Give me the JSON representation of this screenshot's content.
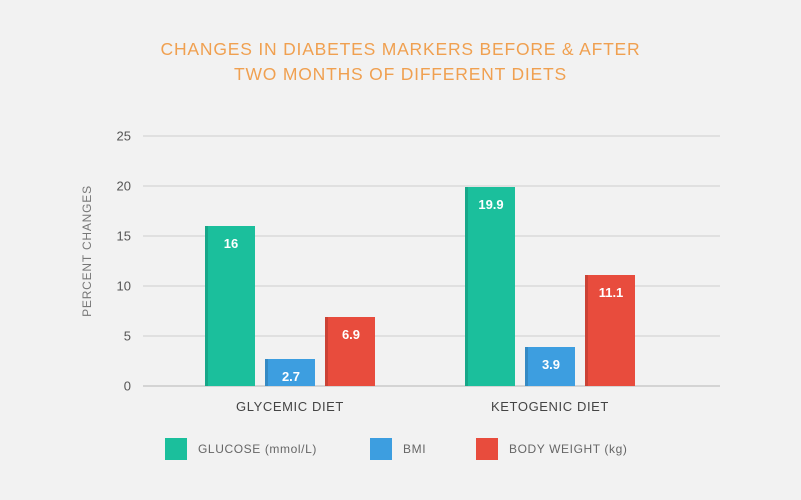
{
  "chart_data": {
    "type": "bar",
    "title_lines": [
      "CHANGES IN DIABETES MARKERS BEFORE & AFTER",
      "TWO MONTHS OF DIFFERENT DIETS"
    ],
    "xlabel": "",
    "ylabel": "PERCENT CHANGES",
    "ylim": [
      0,
      25
    ],
    "yticks": [
      0,
      5,
      10,
      15,
      20,
      25
    ],
    "grid": true,
    "legend_position": "bottom",
    "categories": [
      "GLYCEMIC DIET",
      "KETOGENIC DIET"
    ],
    "series": [
      {
        "name": "GLUCOSE (mmol/L)",
        "color": "#1bbf9c",
        "values": [
          16,
          19.9
        ],
        "labels": [
          "16",
          "19.9"
        ]
      },
      {
        "name": "BMI",
        "color": "#3d9ee0",
        "values": [
          2.7,
          3.9
        ],
        "labels": [
          "2.7",
          "3.9"
        ]
      },
      {
        "name": "BODY WEIGHT (kg)",
        "color": "#e84c3d",
        "values": [
          6.9,
          11.1
        ],
        "labels": [
          "6.9",
          "11.1"
        ]
      }
    ]
  }
}
